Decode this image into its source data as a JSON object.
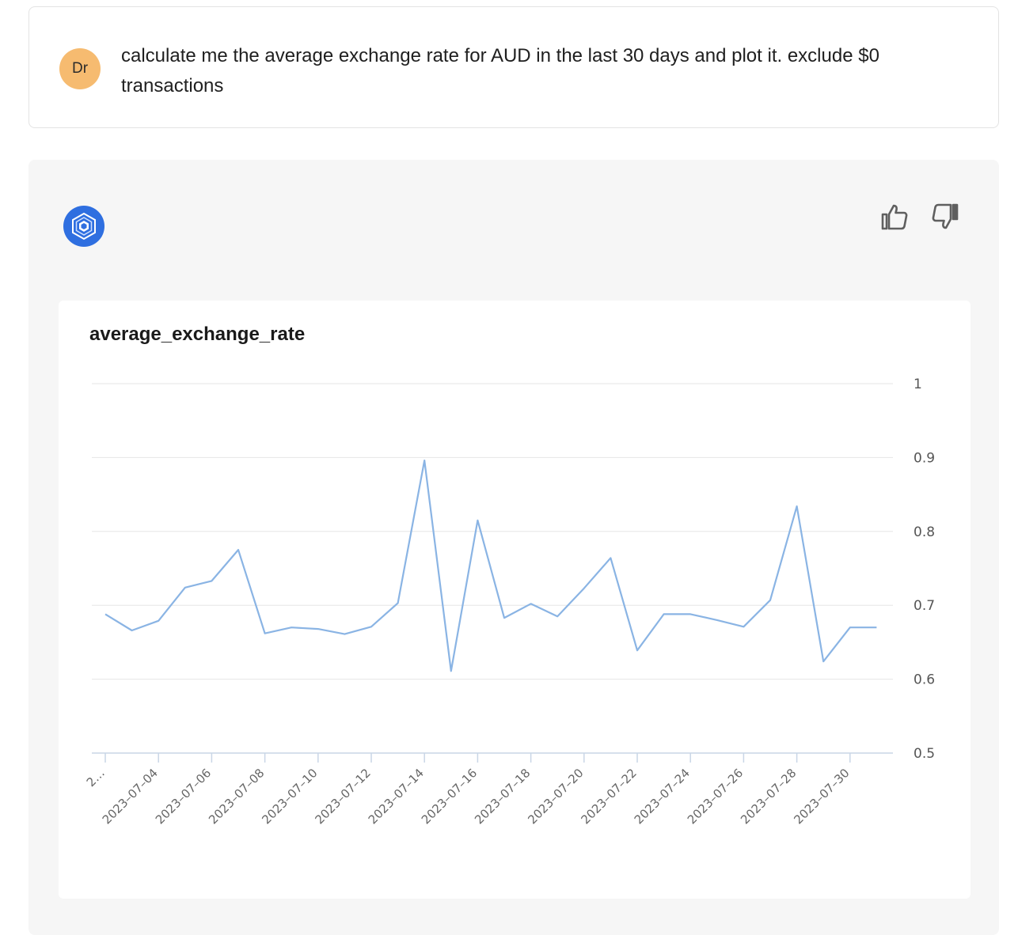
{
  "user_message": {
    "avatar_initials": "Dr",
    "avatar_color": "#f6bb70",
    "text": "calculate me the average exchange rate for AUD in the last 30 days and plot it. exclude $0 transactions"
  },
  "assistant": {
    "avatar_icon": "hexagon-logo-icon",
    "accent_color": "#2f6fe0",
    "feedback": {
      "up_icon": "thumbs-up-icon",
      "down_icon": "thumbs-down-icon"
    }
  },
  "chart_data": {
    "type": "line",
    "title": "average_exchange_rate",
    "xlabel": "",
    "ylabel": "",
    "ylim": [
      0.5,
      1
    ],
    "yticks": [
      0.5,
      0.6,
      0.7,
      0.8,
      0.9,
      1
    ],
    "ytick_labels": [
      "0.5",
      "0.6",
      "0.7",
      "0.8",
      "0.9",
      "1"
    ],
    "grid": true,
    "line_color": "#8ab4e4",
    "x": [
      "2023-07-02",
      "2023-07-03",
      "2023-07-04",
      "2023-07-05",
      "2023-07-06",
      "2023-07-07",
      "2023-07-08",
      "2023-07-09",
      "2023-07-10",
      "2023-07-11",
      "2023-07-12",
      "2023-07-13",
      "2023-07-14",
      "2023-07-15",
      "2023-07-16",
      "2023-07-17",
      "2023-07-18",
      "2023-07-19",
      "2023-07-20",
      "2023-07-21",
      "2023-07-22",
      "2023-07-23",
      "2023-07-24",
      "2023-07-25",
      "2023-07-26",
      "2023-07-27",
      "2023-07-28",
      "2023-07-29",
      "2023-07-30",
      "2023-07-31"
    ],
    "values": [
      0.688,
      0.666,
      0.679,
      0.724,
      0.733,
      0.775,
      0.662,
      0.67,
      0.668,
      0.661,
      0.671,
      0.703,
      0.896,
      0.611,
      0.815,
      0.683,
      0.702,
      0.685,
      0.723,
      0.764,
      0.639,
      0.688,
      0.688,
      0.68,
      0.671,
      0.707,
      0.834,
      0.624,
      0.67,
      0.67
    ],
    "xtick_labels": [
      "2…",
      "2023–07–04",
      "2023–07–06",
      "2023–07–08",
      "2023–07–10",
      "2023–07–12",
      "2023–07–14",
      "2023–07–16",
      "2023–07–18",
      "2023–07–20",
      "2023–07–22",
      "2023–07–24",
      "2023–07–26",
      "2023–07–28",
      "2023–07–30"
    ]
  }
}
